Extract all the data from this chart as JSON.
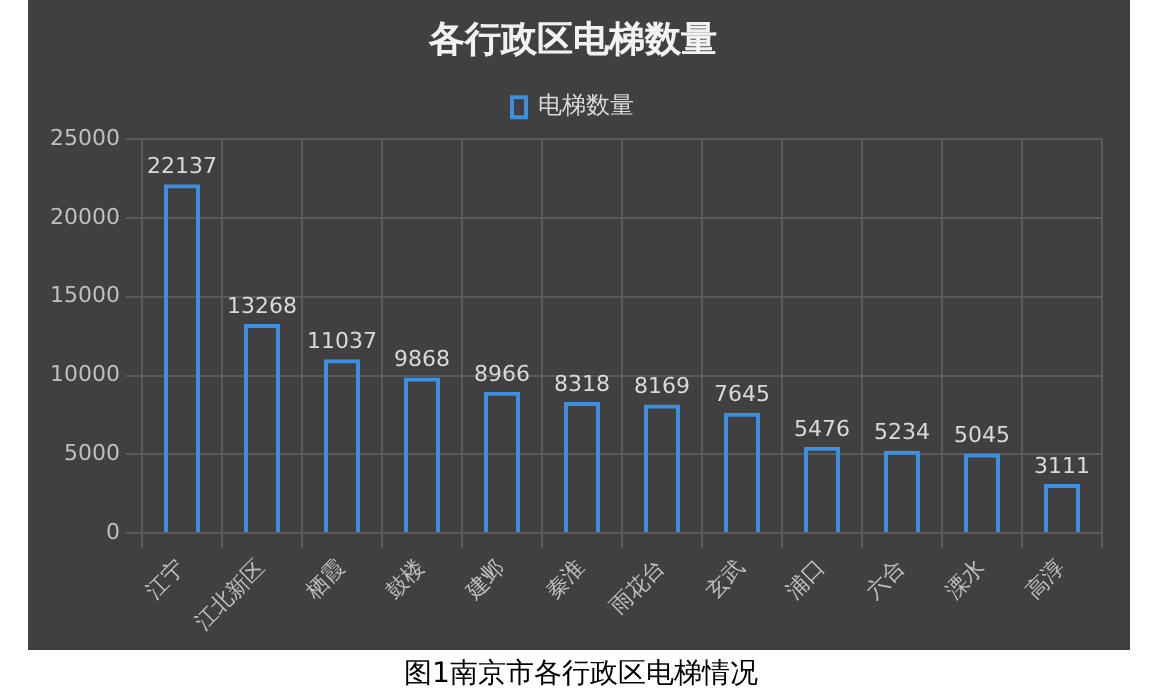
{
  "chart_data": {
    "type": "bar",
    "title": "各行政区电梯数量",
    "categories": [
      "江宁",
      "江北新区",
      "栖霞",
      "鼓楼",
      "建邺",
      "秦淮",
      "雨花台",
      "玄武",
      "浦口",
      "六合",
      "溧水",
      "高淳"
    ],
    "series": [
      {
        "name": "电梯数量",
        "color": "#3f8fdf",
        "values": [
          22137,
          13268,
          11037,
          9868,
          8966,
          8318,
          8169,
          7645,
          5476,
          5234,
          5045,
          3111
        ]
      }
    ],
    "ylim": [
      0,
      25000
    ],
    "yticks": [
      0,
      5000,
      10000,
      15000,
      20000,
      25000
    ],
    "grid": true,
    "legend": "top",
    "data_labels": true,
    "annotations": [
      "图1南京市各行政区电梯情况"
    ]
  }
}
